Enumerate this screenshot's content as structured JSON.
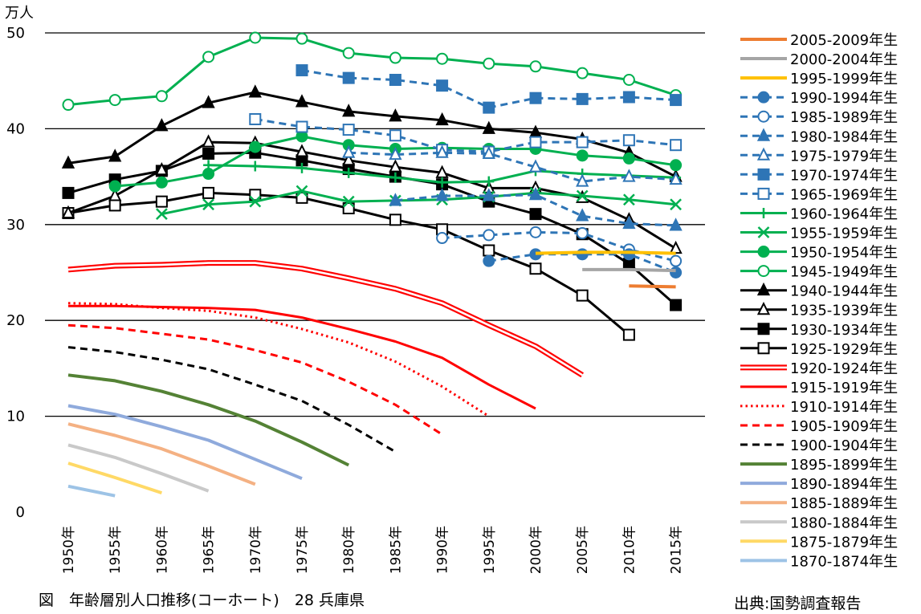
{
  "caption": "図　年齢層別人口推移(コーホート)　28 兵庫県",
  "source": "出典:国勢調査報告",
  "chart_data": {
    "type": "line",
    "ylabel": "万人",
    "ylim": [
      0,
      50
    ],
    "yticks": [
      0,
      10,
      20,
      30,
      40,
      50
    ],
    "grid": true,
    "legend_position": "right",
    "categories": [
      "1950年",
      "1955年",
      "1960年",
      "1965年",
      "1970年",
      "1975年",
      "1980年",
      "1985年",
      "1990年",
      "1995年",
      "2000年",
      "2005年",
      "2010年",
      "2015年"
    ],
    "series": [
      {
        "name": "2005-2009年生",
        "color": "#ed7d31",
        "style": "solid",
        "width": 4,
        "marker": "none",
        "values": [
          null,
          null,
          null,
          null,
          null,
          null,
          null,
          null,
          null,
          null,
          null,
          null,
          23.6,
          23.5
        ]
      },
      {
        "name": "2000-2004年生",
        "color": "#a5a5a5",
        "style": "solid",
        "width": 4,
        "marker": "none",
        "values": [
          null,
          null,
          null,
          null,
          null,
          null,
          null,
          null,
          null,
          null,
          null,
          25.3,
          25.3,
          25.2
        ]
      },
      {
        "name": "1995-1999年生",
        "color": "#ffc000",
        "style": "solid",
        "width": 4,
        "marker": "none",
        "values": [
          null,
          null,
          null,
          null,
          null,
          null,
          null,
          null,
          null,
          null,
          27.0,
          27.1,
          27.1,
          27.0
        ]
      },
      {
        "name": "1990-1994年生",
        "color": "#2e75b6",
        "style": "dashed",
        "width": 3,
        "marker": "circle-filled",
        "values": [
          null,
          null,
          null,
          null,
          null,
          null,
          null,
          null,
          null,
          26.2,
          26.9,
          26.9,
          26.9,
          25.0
        ]
      },
      {
        "name": "1985-1989年生",
        "color": "#2e75b6",
        "style": "dashed",
        "width": 3,
        "marker": "circle-open",
        "values": [
          null,
          null,
          null,
          null,
          null,
          null,
          null,
          null,
          28.6,
          28.9,
          29.2,
          29.1,
          27.4,
          26.2
        ]
      },
      {
        "name": "1980-1984年生",
        "color": "#2e75b6",
        "style": "dashed",
        "width": 3,
        "marker": "triangle-filled",
        "values": [
          null,
          null,
          null,
          null,
          null,
          null,
          null,
          32.5,
          33.0,
          33.0,
          33.1,
          30.9,
          30.1,
          29.9
        ]
      },
      {
        "name": "1975-1979年生",
        "color": "#2e75b6",
        "style": "dashed",
        "width": 3,
        "marker": "triangle-open",
        "values": [
          null,
          null,
          null,
          null,
          null,
          null,
          37.5,
          37.3,
          37.5,
          37.4,
          36.0,
          34.5,
          35.0,
          34.7
        ]
      },
      {
        "name": "1970-1974年生",
        "color": "#2e75b6",
        "style": "dashed",
        "width": 3,
        "marker": "square-filled",
        "values": [
          null,
          null,
          null,
          null,
          null,
          46.1,
          45.3,
          45.1,
          44.5,
          42.2,
          43.2,
          43.1,
          43.3,
          43.0
        ]
      },
      {
        "name": "1965-1969年生",
        "color": "#2e75b6",
        "style": "dashed",
        "width": 3,
        "marker": "square-open",
        "values": [
          null,
          null,
          null,
          null,
          41.0,
          40.2,
          39.9,
          39.3,
          37.8,
          37.6,
          38.6,
          38.6,
          38.8,
          38.3
        ]
      },
      {
        "name": "1960-1964年生",
        "color": "#00b050",
        "style": "solid",
        "width": 3,
        "marker": "plus",
        "values": [
          null,
          null,
          null,
          36.2,
          36.1,
          35.9,
          35.4,
          34.9,
          34.4,
          34.5,
          35.6,
          35.3,
          35.1,
          34.9
        ]
      },
      {
        "name": "1955-1959年生",
        "color": "#00b050",
        "style": "solid",
        "width": 3,
        "marker": "x",
        "values": [
          null,
          null,
          31.1,
          32.1,
          32.4,
          33.5,
          32.4,
          32.5,
          32.6,
          32.9,
          33.3,
          33.0,
          32.6,
          32.1
        ]
      },
      {
        "name": "1950-1954年生",
        "color": "#00b050",
        "style": "solid",
        "width": 3,
        "marker": "circle-filled",
        "values": [
          null,
          34.0,
          34.4,
          35.3,
          38.1,
          39.2,
          38.3,
          37.9,
          38.0,
          37.9,
          37.9,
          37.2,
          36.9,
          36.2
        ]
      },
      {
        "name": "1945-1949年生",
        "color": "#00b050",
        "style": "solid",
        "width": 3,
        "marker": "circle-open",
        "values": [
          42.5,
          43.0,
          43.4,
          47.5,
          49.5,
          49.4,
          47.9,
          47.4,
          47.3,
          46.8,
          46.5,
          45.8,
          45.1,
          43.5
        ]
      },
      {
        "name": "1940-1944年生",
        "color": "#000000",
        "style": "solid",
        "width": 3,
        "marker": "triangle-filled",
        "values": [
          36.4,
          37.1,
          40.3,
          42.7,
          43.8,
          42.8,
          41.8,
          41.3,
          40.9,
          40.0,
          39.6,
          38.9,
          37.5,
          35.0
        ]
      },
      {
        "name": "1935-1939年生",
        "color": "#000000",
        "style": "solid",
        "width": 3,
        "marker": "triangle-open",
        "values": [
          31.2,
          33.0,
          35.7,
          38.6,
          38.5,
          37.6,
          36.7,
          36.0,
          35.4,
          33.8,
          33.8,
          32.8,
          30.5,
          27.5
        ]
      },
      {
        "name": "1930-1934年生",
        "color": "#000000",
        "style": "solid",
        "width": 3,
        "marker": "square-filled",
        "values": [
          33.3,
          34.7,
          35.6,
          37.4,
          37.5,
          36.7,
          35.8,
          35.0,
          34.2,
          32.4,
          31.1,
          29.0,
          25.9,
          21.6
        ]
      },
      {
        "name": "1925-1929年生",
        "color": "#000000",
        "style": "solid",
        "width": 3,
        "marker": "square-open",
        "values": [
          31.2,
          32.0,
          32.4,
          33.3,
          33.1,
          32.8,
          31.7,
          30.5,
          29.5,
          27.3,
          25.4,
          22.6,
          18.5,
          null
        ]
      },
      {
        "name": "1920-1924年生",
        "color": "#ff0000",
        "style": "double",
        "width": 3,
        "marker": "none",
        "values": [
          25.3,
          25.7,
          25.8,
          26.0,
          26.0,
          25.4,
          24.4,
          23.3,
          21.8,
          19.5,
          17.3,
          14.3,
          null,
          null
        ]
      },
      {
        "name": "1915-1919年生",
        "color": "#ff0000",
        "style": "solid",
        "width": 3,
        "marker": "none",
        "values": [
          21.5,
          21.5,
          21.4,
          21.3,
          21.1,
          20.3,
          19.1,
          17.8,
          16.1,
          13.3,
          10.8,
          null,
          null,
          null
        ]
      },
      {
        "name": "1910-1914年生",
        "color": "#ff0000",
        "style": "dotted",
        "width": 3,
        "marker": "none",
        "values": [
          21.8,
          21.7,
          21.3,
          21.0,
          20.3,
          19.1,
          17.7,
          15.7,
          13.1,
          10.0,
          null,
          null,
          null,
          null
        ]
      },
      {
        "name": "1905-1909年生",
        "color": "#ff0000",
        "style": "dashed",
        "width": 3,
        "marker": "none",
        "values": [
          19.5,
          19.2,
          18.6,
          18.0,
          16.9,
          15.6,
          13.6,
          11.2,
          8.1,
          null,
          null,
          null,
          null,
          null
        ]
      },
      {
        "name": "1900-1904年生",
        "color": "#000000",
        "style": "dashed",
        "width": 3,
        "marker": "none",
        "values": [
          17.2,
          16.7,
          15.9,
          14.9,
          13.3,
          11.6,
          9.1,
          6.3,
          null,
          null,
          null,
          null,
          null,
          null
        ]
      },
      {
        "name": "1895-1899年生",
        "color": "#548235",
        "style": "solid",
        "width": 4,
        "marker": "none",
        "values": [
          14.3,
          13.7,
          12.6,
          11.2,
          9.5,
          7.3,
          4.9,
          null,
          null,
          null,
          null,
          null,
          null,
          null
        ]
      },
      {
        "name": "1890-1894年生",
        "color": "#8faadc",
        "style": "solid",
        "width": 4,
        "marker": "none",
        "values": [
          11.1,
          10.2,
          8.9,
          7.5,
          5.5,
          3.5,
          null,
          null,
          null,
          null,
          null,
          null,
          null,
          null
        ]
      },
      {
        "name": "1885-1889年生",
        "color": "#f4b183",
        "style": "solid",
        "width": 4,
        "marker": "none",
        "values": [
          9.2,
          8.0,
          6.6,
          4.8,
          2.9,
          null,
          null,
          null,
          null,
          null,
          null,
          null,
          null,
          null
        ]
      },
      {
        "name": "1880-1884年生",
        "color": "#c9c9c9",
        "style": "solid",
        "width": 4,
        "marker": "none",
        "values": [
          7.0,
          5.7,
          4.0,
          2.2,
          null,
          null,
          null,
          null,
          null,
          null,
          null,
          null,
          null,
          null
        ]
      },
      {
        "name": "1875-1879年生",
        "color": "#ffd966",
        "style": "solid",
        "width": 4,
        "marker": "none",
        "values": [
          5.1,
          3.6,
          2.0,
          null,
          null,
          null,
          null,
          null,
          null,
          null,
          null,
          null,
          null,
          null
        ]
      },
      {
        "name": "1870-1874年生",
        "color": "#9dc3e6",
        "style": "solid",
        "width": 4,
        "marker": "none",
        "values": [
          2.7,
          1.7,
          null,
          null,
          null,
          null,
          null,
          null,
          null,
          null,
          null,
          null,
          null,
          null
        ]
      }
    ]
  }
}
